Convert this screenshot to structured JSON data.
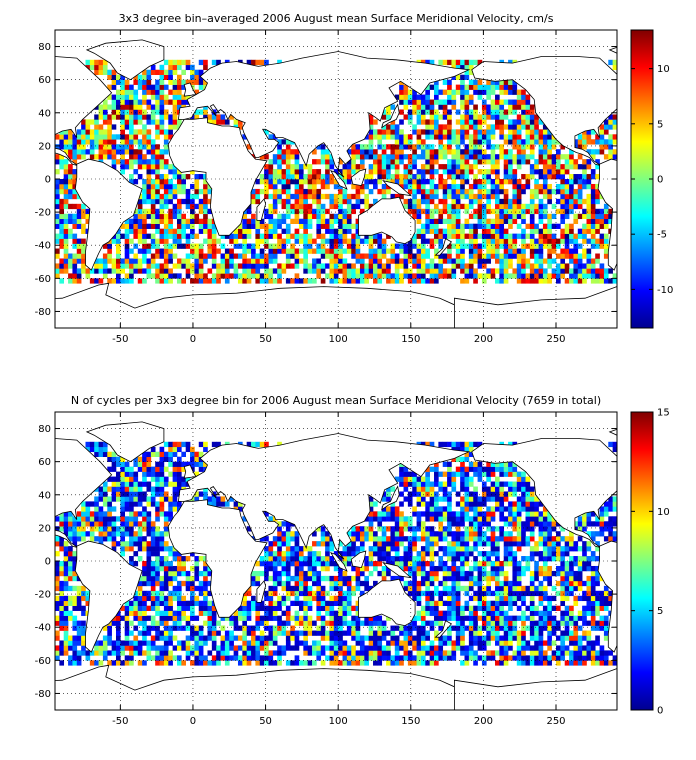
{
  "chart_data": [
    {
      "type": "heatmap",
      "title": "3x3 degree bin–averaged 2006 August mean Surface Meridional Velocity, cm/s",
      "xlim": [
        -95,
        292
      ],
      "ylim": [
        -90,
        90
      ],
      "x_ticks": [
        -50,
        0,
        50,
        100,
        150,
        200,
        250
      ],
      "y_ticks": [
        80,
        60,
        40,
        20,
        0,
        -20,
        -40,
        -60,
        -80
      ],
      "grid": "dotted",
      "bin_size_deg": 3,
      "colorbar": {
        "colormap": "jet",
        "range": [
          -13.5,
          13.5
        ],
        "ticks": [
          10,
          5,
          0,
          -5,
          -10
        ],
        "placement": "right"
      },
      "ocean_bins_lat_range": [
        -63,
        72
      ]
    },
    {
      "type": "heatmap",
      "title": "N of cycles per 3x3 degree bin for 2006 August mean Surface Meridional Velocity (7659 in total)",
      "xlim": [
        -95,
        292
      ],
      "ylim": [
        -90,
        90
      ],
      "x_ticks": [
        -50,
        0,
        50,
        100,
        150,
        200,
        250
      ],
      "y_ticks": [
        80,
        60,
        40,
        20,
        0,
        -20,
        -40,
        -60,
        -80
      ],
      "grid": "dotted",
      "bin_size_deg": 3,
      "total_cycles": 7659,
      "colorbar": {
        "colormap": "jet",
        "range": [
          0,
          15
        ],
        "ticks": [
          15,
          10,
          5,
          0
        ],
        "placement": "right"
      },
      "ocean_bins_lat_range": [
        -63,
        72
      ]
    }
  ]
}
